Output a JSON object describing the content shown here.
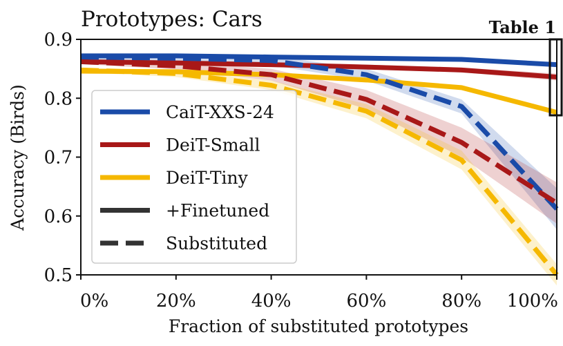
{
  "chart_data": {
    "type": "line",
    "title": "Prototypes: Cars",
    "annotation": "Table 1",
    "xlabel": "Fraction of substituted prototypes",
    "ylabel": "Accuracy (Birds)",
    "x": [
      0,
      20,
      40,
      60,
      80,
      100
    ],
    "xticklabels": [
      "0%",
      "20%",
      "40%",
      "60%",
      "80%",
      "100%"
    ],
    "xlim": [
      0,
      100
    ],
    "ylim": [
      0.5,
      0.9
    ],
    "yticks": [
      0.5,
      0.6,
      0.7,
      0.8,
      0.9
    ],
    "yticklabels": [
      "0.5",
      "0.6",
      "0.7",
      "0.8",
      "0.9"
    ],
    "legend_position": "center-left",
    "colors": {
      "cait": "#1a4ba8",
      "deit_small": "#a81818",
      "deit_tiny": "#f5b800",
      "legend_style": "#333333"
    },
    "series": [
      {
        "name": "CaiT-XXS-24",
        "model": "cait",
        "style": "Finetuned",
        "values": [
          0.872,
          0.872,
          0.87,
          0.868,
          0.866,
          0.857
        ],
        "band": [
          0,
          0,
          0,
          0,
          0,
          0
        ]
      },
      {
        "name": "DeiT-Small",
        "model": "deit_small",
        "style": "Finetuned",
        "values": [
          0.862,
          0.86,
          0.857,
          0.853,
          0.848,
          0.836
        ],
        "band": [
          0,
          0,
          0.003,
          0.004,
          0.004,
          0.006
        ]
      },
      {
        "name": "DeiT-Tiny",
        "model": "deit_tiny",
        "style": "Finetuned",
        "values": [
          0.846,
          0.845,
          0.84,
          0.831,
          0.818,
          0.776
        ],
        "band": [
          0,
          0,
          0,
          0,
          0,
          0
        ]
      },
      {
        "name": "CaiT-XXS-24",
        "model": "cait",
        "style": "Substituted",
        "values": [
          0.87,
          0.868,
          0.864,
          0.84,
          0.786,
          0.612
        ],
        "band": [
          0.004,
          0.006,
          0.008,
          0.01,
          0.012,
          0.035
        ]
      },
      {
        "name": "DeiT-Small",
        "model": "deit_small",
        "style": "Substituted",
        "values": [
          0.862,
          0.855,
          0.84,
          0.798,
          0.725,
          0.622
        ],
        "band": [
          0.004,
          0.006,
          0.01,
          0.016,
          0.025,
          0.035
        ]
      },
      {
        "name": "DeiT-Tiny",
        "model": "deit_tiny",
        "style": "Substituted",
        "values": [
          0.848,
          0.842,
          0.822,
          0.778,
          0.695,
          0.5
        ],
        "band": [
          0.004,
          0.006,
          0.008,
          0.012,
          0.016,
          0.018
        ]
      }
    ],
    "legend": [
      {
        "label": "CaiT-XXS-24",
        "color_key": "cait",
        "dash": false
      },
      {
        "label": "DeiT-Small",
        "color_key": "deit_small",
        "dash": false
      },
      {
        "label": "DeiT-Tiny",
        "color_key": "deit_tiny",
        "dash": false
      },
      {
        "label": "+Finetuned",
        "color_key": "legend_style",
        "dash": false
      },
      {
        "label": "Substituted",
        "color_key": "legend_style",
        "dash": true
      }
    ]
  }
}
